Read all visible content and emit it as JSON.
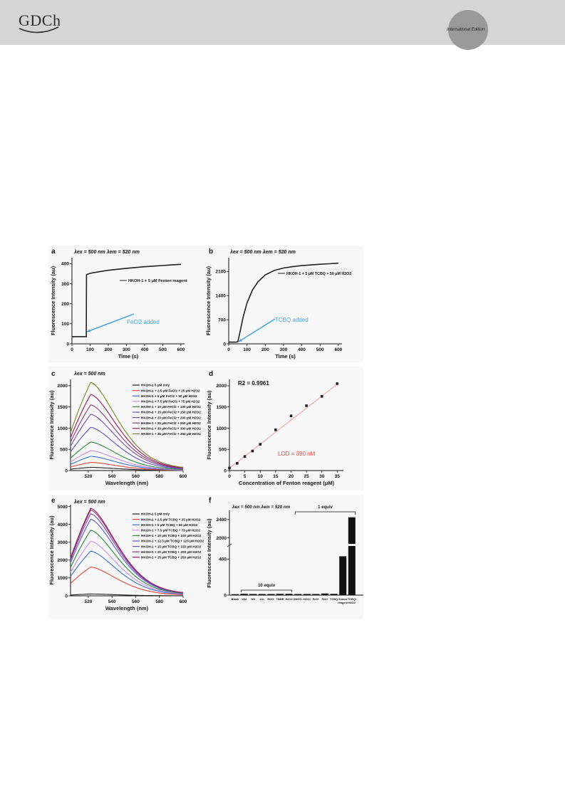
{
  "header": {
    "logo_text": "GDCh",
    "edition_label": "International Edition"
  },
  "panels": {
    "a": {
      "letter": "a",
      "conditions": "λex = 500 nm λem = 520 nm",
      "legend": "HKOH-1 + 5 μM Fenton reagent",
      "annotation": "FeCl2 added",
      "xlabel": "Time (s)",
      "ylabel": "Fluorescence Intensity (au)",
      "xticks": [
        "0",
        "100",
        "200",
        "300",
        "400",
        "500",
        "600"
      ],
      "yticks": [
        "0",
        "100",
        "200",
        "300",
        "400"
      ]
    },
    "b": {
      "letter": "b",
      "conditions": "λex = 500 nm λem = 520 nm",
      "legend": "HKOH-1 + 5 μM TCBQ + 50 μM H2O2",
      "annotation": "TCBQ added",
      "xlabel": "Time (s)",
      "ylabel": "Fluorescence Intensity (au)",
      "xticks": [
        "0",
        "100",
        "200",
        "300",
        "400",
        "500",
        "600"
      ],
      "yticks": [
        "0",
        "700",
        "1400",
        "2100"
      ]
    },
    "c": {
      "letter": "c",
      "conditions": "λex = 500 nm",
      "xlabel": "Wavelength (nm)",
      "ylabel": "Fluorescence Intensity (au)",
      "xticks": [
        "520",
        "540",
        "560",
        "580",
        "600"
      ],
      "yticks": [
        "0",
        "500",
        "1000",
        "1500",
        "2000"
      ],
      "legend": [
        "HKOH-1 5 μM only",
        "HKOH-1 + 2.5 μM FeCl2 + 25 μM H2O2",
        "HKOH-1 + 5 μM FeCl2 + 50 μM H2O2",
        "HKOH-1 + 7.5 μM FeCl2 + 75 μM H2O2",
        "HKOH-1 + 10 μM FeCl2 + 100 μM H2O2",
        "HKOH-1 + 15 μM FeCl2 + 150 μM H2O2",
        "HKOH-1 + 20 μM FeCl2 + 200 μM H2O2",
        "HKOH-1 + 25 μM FeCl2 + 250 μM H2O2",
        "HKOH-1 + 30 μM FeCl2 + 300 μM H2O2",
        "HKOH-1 + 35 μM FeCl2 + 350 μM H2O2"
      ]
    },
    "d": {
      "letter": "d",
      "r2": "R2 = 0.9961",
      "lod": "LOD = 390 nM",
      "xlabel": "Concentration of Fenton reagent (μM)",
      "ylabel": "Fluorescence Intensity (au)",
      "xticks": [
        "0",
        "5",
        "10",
        "15",
        "20",
        "25",
        "30",
        "35"
      ],
      "yticks": [
        "0",
        "500",
        "1000",
        "1500",
        "2000"
      ]
    },
    "e": {
      "letter": "e",
      "conditions": "λex = 500 nm",
      "xlabel": "Wavelength (nm)",
      "ylabel": "Fluorescence Intensity (au)",
      "xticks": [
        "520",
        "540",
        "560",
        "580",
        "600"
      ],
      "yticks": [
        "0",
        "1000",
        "2000",
        "3000",
        "4000",
        "5000"
      ],
      "legend": [
        "HKOH-1 5 μM only",
        "HKOH-1 + 2.5 μM TCBQ + 25 μM H2O2",
        "HKOH-1 + 5 μM TCBQ + 50 μM H2O2",
        "HKOH-1 + 7.5 μM TCBQ + 75 μM H2O2",
        "HKOH-1 + 10 μM TCBQ + 100 μM H2O2",
        "HKOH-1 + 12.5 μM TCBQ + 125 μM H2O2",
        "HKOH-1 + 15 μM TCBQ + 150 μM H2O2",
        "HKOH-1 + 20 μM TCBQ + 200 μM H2O2",
        "HKOH-1 + 25 μM TCBQ + 250 μM H2O2"
      ]
    },
    "f": {
      "letter": "f",
      "conditions": "λex = 500 nm λem = 520 nm",
      "ylabel": "Fluorescence Intensity (au)",
      "yticks": [
        "0",
        "400",
        "2000",
        "2400"
      ],
      "bracket_10": "10 equiv",
      "bracket_1": "1 equiv",
      "categories": [
        "Blank",
        "1O2",
        "NO",
        "O2-",
        "ROO·",
        "TBHP",
        "H2O2",
        "ONOO-",
        "HOCl",
        "Fe3+",
        "Fe2+",
        "TCBQ",
        "fenton reagent",
        "TCBQ/ H2O2"
      ]
    }
  },
  "chart_data": [
    {
      "type": "line",
      "panel": "a",
      "xlabel": "Time (s)",
      "ylabel": "Fluorescence Intensity (au)",
      "xlim": [
        0,
        620
      ],
      "ylim": [
        0,
        430
      ],
      "series": [
        {
          "name": "HKOH-1 + 5 μM Fenton reagent",
          "x": [
            0,
            20,
            40,
            60,
            79,
            80,
            84,
            100,
            150,
            200,
            250,
            300,
            350,
            400,
            450,
            500,
            550,
            600
          ],
          "y": [
            36,
            36,
            36,
            36,
            36,
            345,
            347,
            352,
            360,
            367,
            372,
            377,
            381,
            385,
            388,
            391,
            394,
            397
          ]
        }
      ]
    },
    {
      "type": "line",
      "panel": "b",
      "xlabel": "Time (s)",
      "ylabel": "Fluorescence Intensity (au)",
      "xlim": [
        0,
        620
      ],
      "ylim": [
        0,
        2500
      ],
      "series": [
        {
          "name": "HKOH-1 + 5 μM TCBQ + 50 μM H2O2",
          "x": [
            0,
            20,
            40,
            50,
            60,
            80,
            100,
            130,
            160,
            200,
            250,
            300,
            350,
            400,
            450,
            500,
            550,
            600
          ],
          "y": [
            50,
            50,
            50,
            60,
            300,
            800,
            1180,
            1560,
            1800,
            2000,
            2130,
            2200,
            2240,
            2270,
            2290,
            2310,
            2325,
            2340
          ]
        }
      ]
    },
    {
      "type": "line",
      "panel": "c",
      "xlabel": "Wavelength (nm)",
      "ylabel": "Fluorescence Intensity (au)",
      "xlim": [
        505,
        600
      ],
      "ylim": [
        0,
        2150
      ],
      "peak_wavelength": 522,
      "series": [
        {
          "name": "HKOH-1 5 μM only",
          "peak": 75
        },
        {
          "name": "HKOH-1 + 2.5 μM FeCl2 + 25 μM H2O2",
          "peak": 190
        },
        {
          "name": "HKOH-1 + 5 μM FeCl2 + 50 μM H2O2",
          "peak": 330
        },
        {
          "name": "HKOH-1 + 7.5 μM FeCl2 + 75 μM H2O2",
          "peak": 460
        },
        {
          "name": "HKOH-1 + 10 μM FeCl2 + 100 μM H2O2",
          "peak": 660
        },
        {
          "name": "HKOH-1 + 15 μM FeCl2 + 150 μM H2O2",
          "peak": 1000
        },
        {
          "name": "HKOH-1 + 20 μM FeCl2 + 200 μM H2O2",
          "peak": 1300
        },
        {
          "name": "HKOH-1 + 25 μM FeCl2 + 250 μM H2O2",
          "peak": 1520
        },
        {
          "name": "HKOH-1 + 30 μM FeCl2 + 300 μM H2O2",
          "peak": 1760
        },
        {
          "name": "HKOH-1 + 35 μM FeCl2 + 350 μM H2O2",
          "peak": 2040
        }
      ]
    },
    {
      "type": "scatter",
      "panel": "d",
      "xlabel": "Concentration of Fenton reagent (μM)",
      "ylabel": "Fluorescence Intensity (au)",
      "xlim": [
        0,
        37
      ],
      "ylim": [
        0,
        2150
      ],
      "x": [
        0,
        2.5,
        5,
        7.5,
        10,
        15,
        20,
        25,
        30,
        35
      ],
      "y": [
        60,
        170,
        330,
        460,
        620,
        960,
        1290,
        1530,
        1750,
        2050
      ],
      "fit": {
        "x": [
          0,
          35
        ],
        "y": [
          55,
          2040
        ]
      },
      "annotations": [
        "R2 = 0.9961",
        "LOD = 390 nM"
      ]
    },
    {
      "type": "line",
      "panel": "e",
      "xlabel": "Wavelength (nm)",
      "ylabel": "Fluorescence Intensity (au)",
      "xlim": [
        505,
        600
      ],
      "ylim": [
        0,
        5100
      ],
      "peak_wavelength": 522,
      "series": [
        {
          "name": "HKOH-1 5 μM only",
          "peak": 100
        },
        {
          "name": "HKOH-1 + 2.5 μM TCBQ + 25 μM H2O2",
          "peak": 1580
        },
        {
          "name": "HKOH-1 + 5 μM TCBQ + 50 μM H2O2",
          "peak": 2450
        },
        {
          "name": "HKOH-1 + 7.5 μM TCBQ + 75 μM H2O2",
          "peak": 3000
        },
        {
          "name": "HKOH-1 + 10 μM TCBQ + 100 μM H2O2",
          "peak": 3600
        },
        {
          "name": "HKOH-1 + 12.5 μM TCBQ + 125 μM H2O2",
          "peak": 4200
        },
        {
          "name": "HKOH-1 + 15 μM TCBQ + 150 μM H2O2",
          "peak": 4500
        },
        {
          "name": "HKOH-1 + 20 μM TCBQ + 200 μM H2O2",
          "peak": 4700
        },
        {
          "name": "HKOH-1 + 25 μM TCBQ + 250 μM H2O2",
          "peak": 4800
        }
      ]
    },
    {
      "type": "bar",
      "panel": "f",
      "ylabel": "Fluorescence Intensity (au)",
      "axis_break": [
        520,
        1900
      ],
      "categories": [
        "Blank",
        "1O2",
        "NO",
        "O2-",
        "ROO·",
        "TBHP",
        "H2O2",
        "ONOO-",
        "HOCl",
        "Fe3+",
        "Fe2+",
        "TCBQ",
        "fenton reagent",
        "TCBQ/ H2O2"
      ],
      "values": [
        10,
        14,
        12,
        12,
        12,
        14,
        14,
        12,
        12,
        12,
        18,
        14,
        430,
        2450
      ]
    }
  ],
  "colors": {
    "annotation_blue": "#4da6df",
    "fit_line": "#f1a8a8",
    "lod_red": "#e8453c",
    "series_c": [
      "#222222",
      "#e8453c",
      "#3a6fd8",
      "#d28be8",
      "#2a8a3a",
      "#5a56c8",
      "#7a4aa8",
      "#8a3a7a",
      "#9a1a5a",
      "#7a8a2a"
    ],
    "series_e": [
      "#222222",
      "#e8453c",
      "#3a6fd8",
      "#d28be8",
      "#2a8a3a",
      "#5a56c8",
      "#7a4aa8",
      "#8a3a7a",
      "#9a1a5a"
    ]
  }
}
